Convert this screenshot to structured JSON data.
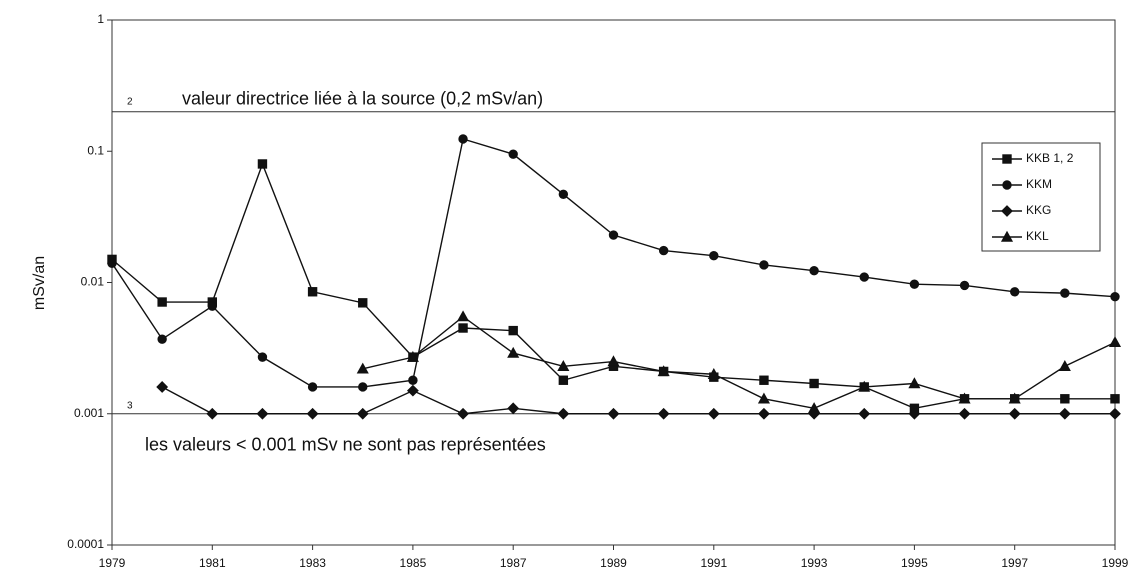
{
  "chart_data": {
    "type": "line",
    "y_label": "mSv/an",
    "log_y": true,
    "grid": false,
    "legend": "upper right",
    "x": [
      1979,
      1980,
      1981,
      1982,
      1983,
      1984,
      1985,
      1986,
      1987,
      1988,
      1989,
      1990,
      1991,
      1992,
      1993,
      1994,
      1995,
      1996,
      1997,
      1998,
      1999
    ],
    "xlim": [
      1979,
      1999
    ],
    "xticks": [
      1979,
      1981,
      1983,
      1985,
      1987,
      1989,
      1991,
      1993,
      1995,
      1997,
      1999
    ],
    "ylim": [
      0.0001,
      1
    ],
    "yticks": [
      0.0001,
      0.001,
      0.01,
      0.1,
      1
    ],
    "hlines": [
      0.2,
      0.001
    ],
    "annotations": [
      "2",
      "valeur directrice liée à la source   (0,2 mSv/an)",
      "3",
      "les valeurs < 0.001 mSv ne sont pas représentées"
    ],
    "series": [
      {
        "name": "KKB 1, 2",
        "color": "#111111",
        "marker": "square",
        "values": [
          0.015,
          0.0071,
          0.0071,
          0.08,
          0.0085,
          0.007,
          0.0027,
          0.0045,
          0.0043,
          0.0018,
          0.0023,
          0.0021,
          0.0019,
          0.0018,
          0.0017,
          0.0016,
          0.0011,
          0.0013,
          0.0013,
          0.0013,
          0.0013
        ]
      },
      {
        "name": "KKM",
        "color": "#111111",
        "marker": "circle",
        "values": [
          0.014,
          0.0037,
          0.0066,
          0.0027,
          0.0016,
          0.0016,
          0.0018,
          0.124,
          0.095,
          0.047,
          0.023,
          0.0175,
          0.016,
          0.0136,
          0.0123,
          0.011,
          0.0097,
          0.0095,
          0.0085,
          0.0083,
          0.0078
        ]
      },
      {
        "name": "KKG",
        "color": "#111111",
        "marker": "diamond",
        "values": [
          null,
          0.0016,
          0.001,
          0.001,
          0.001,
          0.001,
          0.0015,
          0.001,
          0.0011,
          0.001,
          0.001,
          0.001,
          0.001,
          0.001,
          0.001,
          0.001,
          0.001,
          0.001,
          0.001,
          0.001,
          0.001
        ]
      },
      {
        "name": "KKL",
        "color": "#111111",
        "marker": "triangle",
        "values": [
          null,
          null,
          null,
          null,
          null,
          0.0022,
          0.0027,
          0.0055,
          0.0029,
          0.0023,
          0.0025,
          0.0021,
          0.002,
          0.0013,
          0.0011,
          0.0016,
          0.0017,
          0.0013,
          0.0013,
          0.0023,
          0.0035
        ]
      }
    ]
  }
}
